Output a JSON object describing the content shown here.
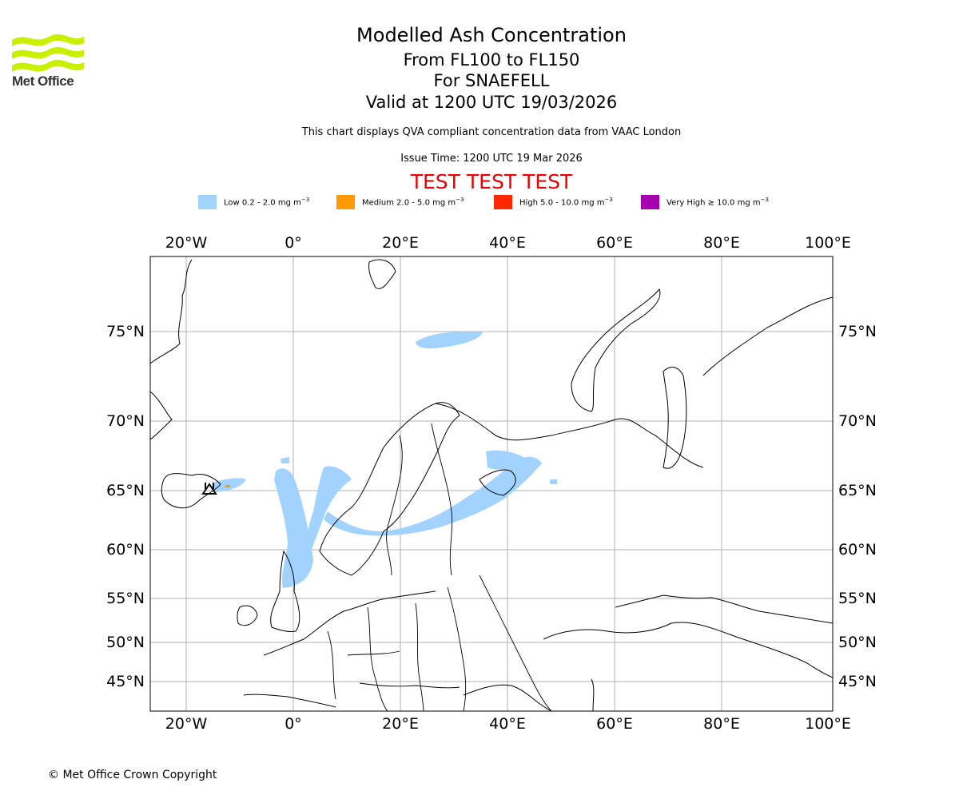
{
  "branding": {
    "logo_text": "Met Office"
  },
  "header": {
    "title": "Modelled Ash Concentration",
    "flight_levels": "From FL100 to FL150",
    "volcano": "For SNAEFELL",
    "valid_time": "Valid at 1200 UTC 19/03/2026",
    "description": "This chart displays QVA compliant concentration data from VAAC London",
    "issue_time": "Issue Time: 1200 UTC 19 Mar 2026",
    "test_banner": "TEST TEST TEST"
  },
  "legend": [
    {
      "label": "Low 0.2 - 2.0 mg m",
      "unit_exp": "−3",
      "color": "#a2d3ff"
    },
    {
      "label": "Medium 2.0 - 5.0 mg m",
      "unit_exp": "−3",
      "color": "#ff9a00"
    },
    {
      "label": "High 5.0 - 10.0 mg m",
      "unit_exp": "−3",
      "color": "#ff2800"
    },
    {
      "label": "Very High  ≥  10.0 mg m",
      "unit_exp": "−3",
      "color": "#a600b0"
    }
  ],
  "map": {
    "lon_ticks": [
      "20°W",
      "0°",
      "20°E",
      "40°E",
      "60°E",
      "80°E",
      "100°E"
    ],
    "lat_ticks": [
      "75°N",
      "70°N",
      "65°N",
      "60°N",
      "55°N",
      "50°N",
      "45°N"
    ],
    "border_color": "#000000",
    "grid_color": "#b0b0b0"
  },
  "footer": {
    "copyright": "© Met Office Crown Copyright"
  }
}
